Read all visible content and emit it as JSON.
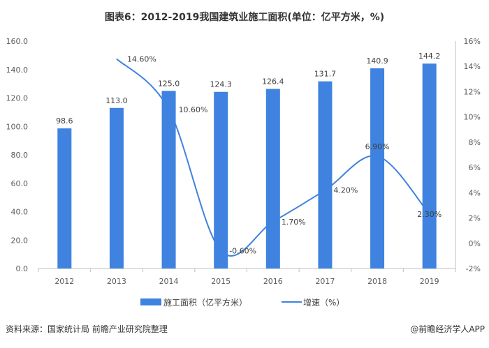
{
  "chart_data": {
    "type": "bar+line",
    "title": "图表6：2012-2019我国建筑业施工面积(单位：亿平方米，%)",
    "categories": [
      "2012",
      "2013",
      "2014",
      "2015",
      "2016",
      "2017",
      "2018",
      "2019"
    ],
    "series": [
      {
        "name": "施工面积（亿平方米）",
        "type": "bar",
        "axis": "left",
        "values": [
          98.6,
          113.0,
          125.0,
          124.3,
          126.4,
          131.7,
          140.9,
          144.2
        ],
        "labels": [
          "98.6",
          "113.0",
          "125.0",
          "124.3",
          "126.4",
          "131.7",
          "140.9",
          "144.2"
        ]
      },
      {
        "name": "增速（%）",
        "type": "line",
        "axis": "right",
        "smooth": true,
        "values": [
          null,
          14.6,
          10.6,
          -0.6,
          1.7,
          4.2,
          6.9,
          2.3
        ],
        "labels": [
          "",
          "14.60%",
          "10.60%",
          "-0.60%",
          "1.70%",
          "4.20%",
          "6.90%",
          "2.30%"
        ]
      }
    ],
    "left_axis": {
      "ylim": [
        0,
        160
      ],
      "ticks": [
        "0.0",
        "20.0",
        "40.0",
        "60.0",
        "80.0",
        "100.0",
        "120.0",
        "140.0",
        "160.0"
      ]
    },
    "right_axis": {
      "ylim": [
        -2,
        16
      ],
      "ticks": [
        "-2%",
        "0%",
        "2%",
        "4%",
        "6%",
        "8%",
        "10%",
        "12%",
        "14%",
        "16%"
      ]
    },
    "grid": false,
    "legend": "bottom",
    "colors": {
      "bar": "#3f82df",
      "line": "#3f82df"
    }
  },
  "footer": {
    "source": "资料来源：国家统计局 前瞻产业研究院整理",
    "brand": "@前瞻经济学人APP"
  }
}
